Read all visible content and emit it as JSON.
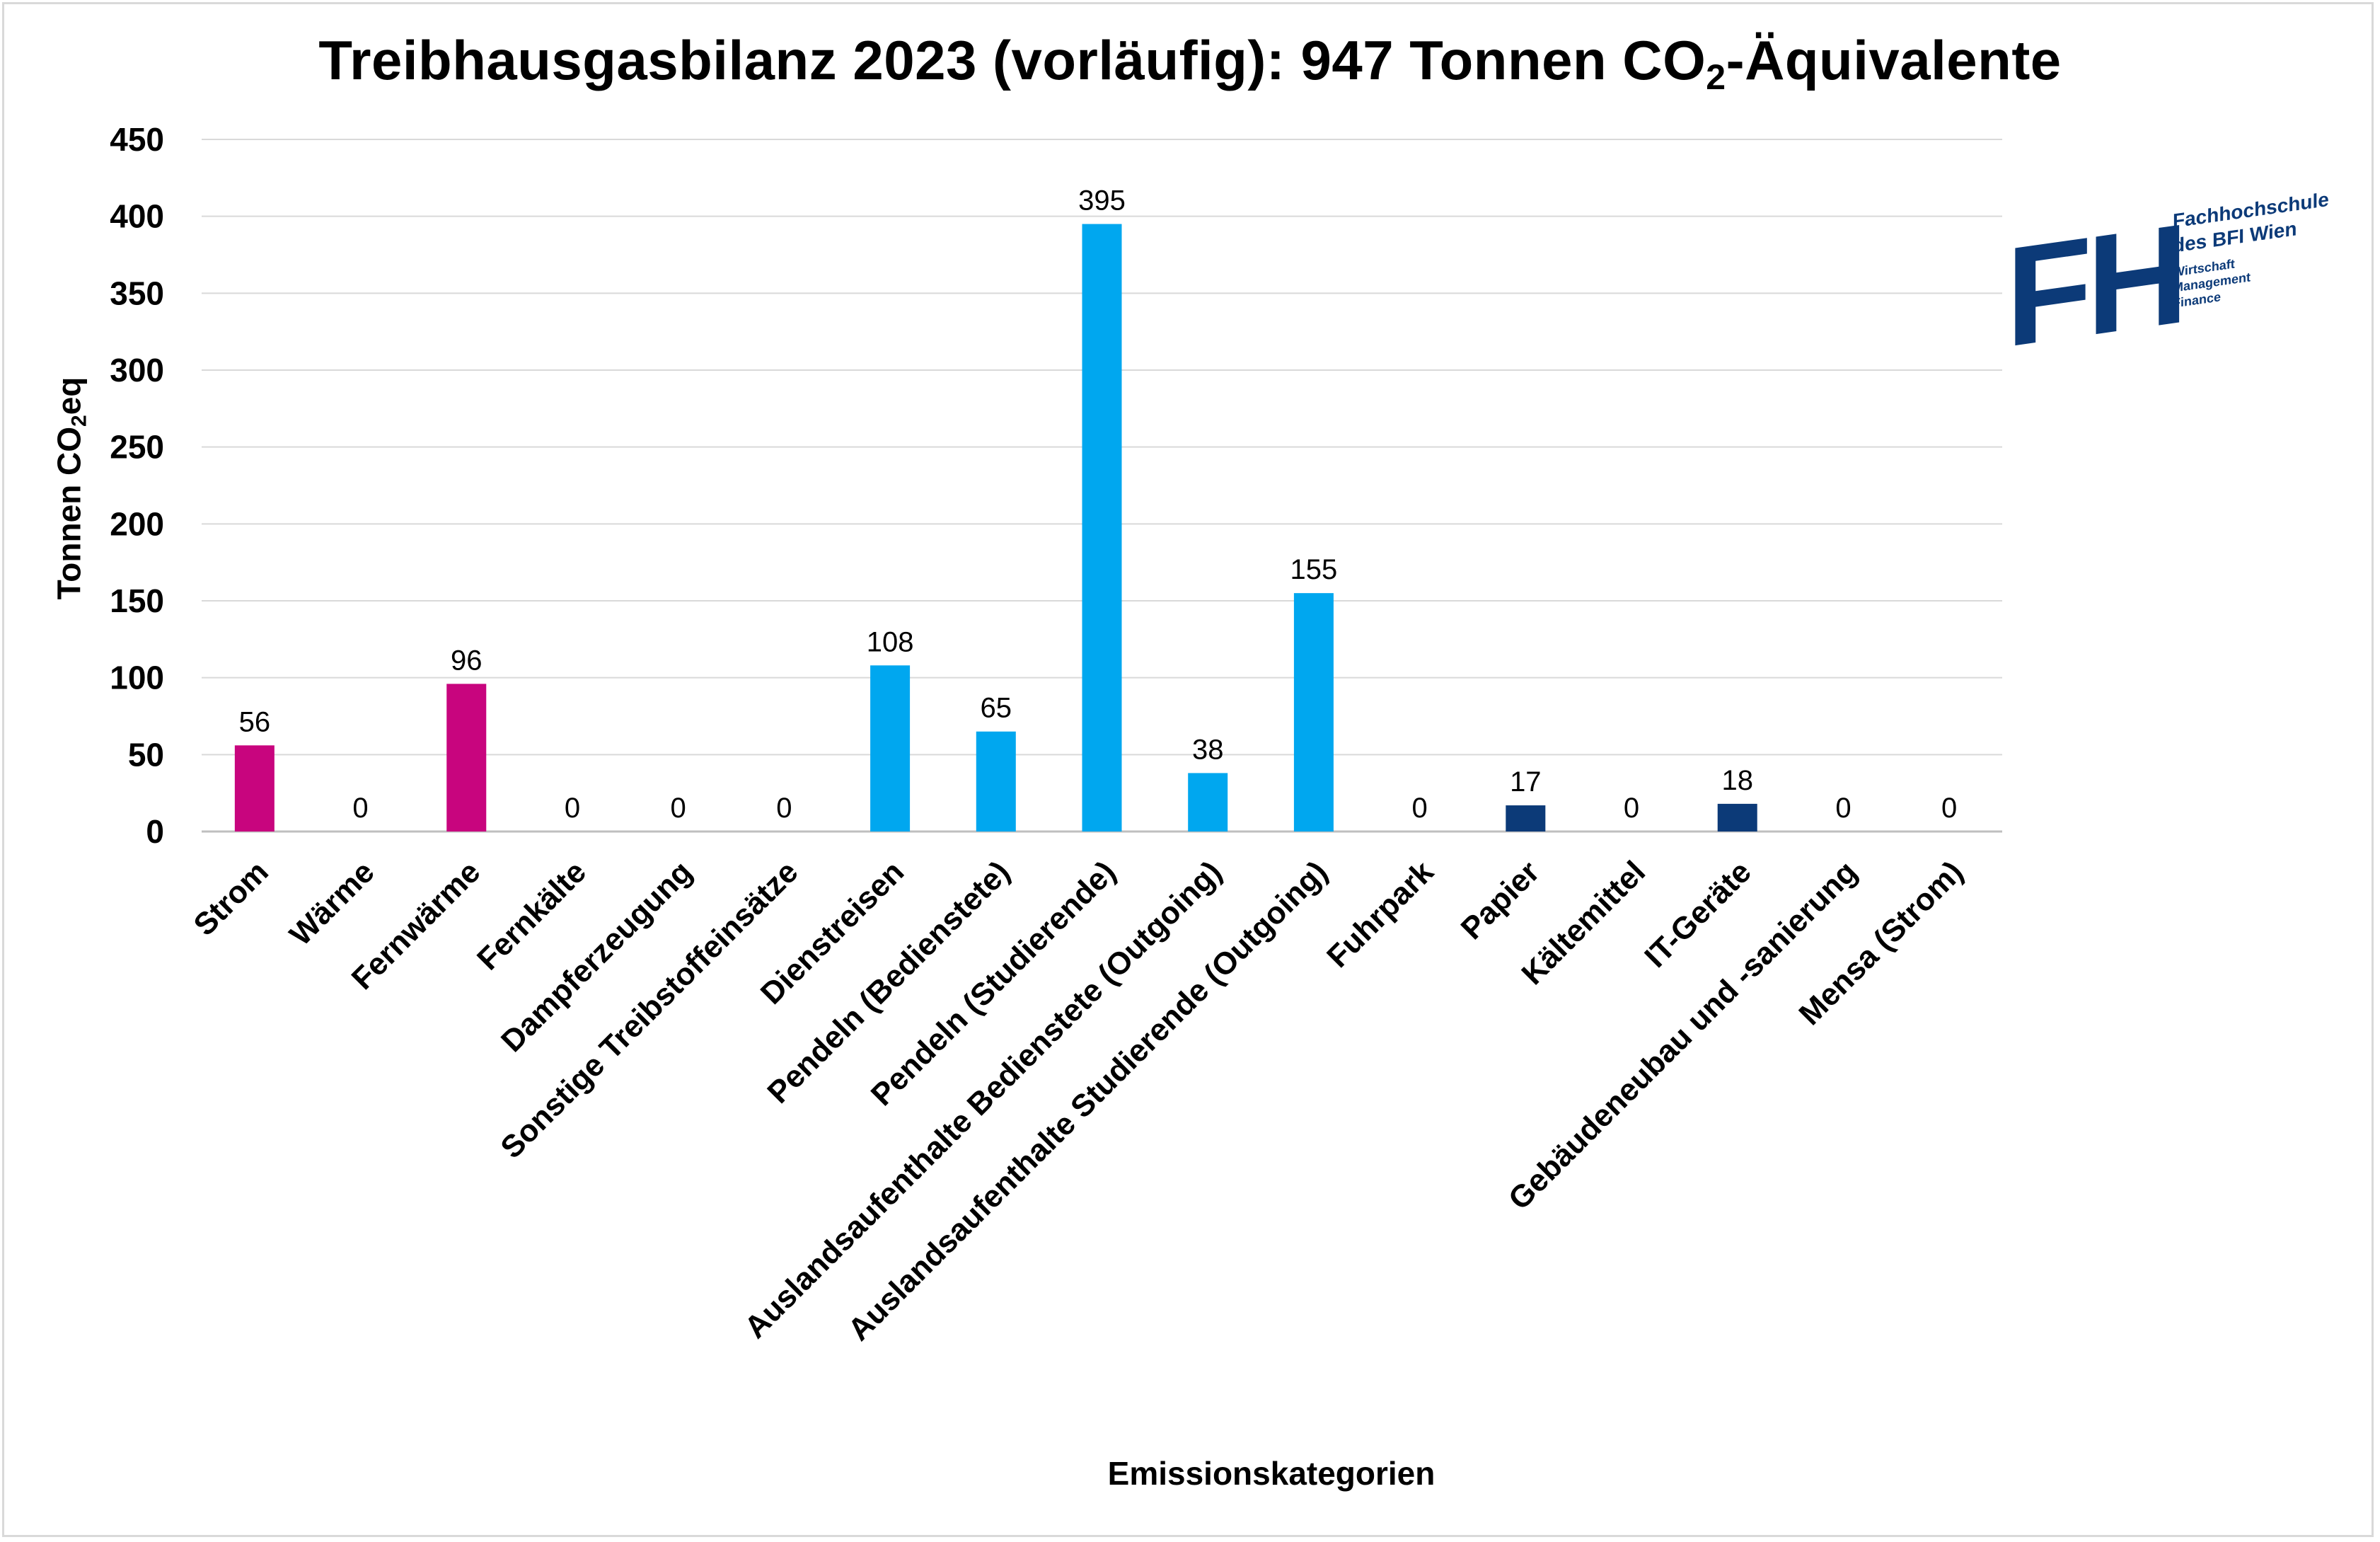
{
  "chart_data": {
    "type": "bar",
    "title_main": "Treibhausgasbilanz 2023 (vorläufig): 947 Tonnen CO",
    "title_sub": "2",
    "title_end": "-Äquivalente",
    "ylabel_main": "Tonnen CO",
    "ylabel_sub": "2",
    "ylabel_end": "eq",
    "xlabel": "Emissionskategorien",
    "ylim": [
      0,
      450
    ],
    "yticks": [
      0,
      50,
      100,
      150,
      200,
      250,
      300,
      350,
      400,
      450
    ],
    "grid": true,
    "legend": "none",
    "categories": [
      "Strom",
      "Wärme",
      "Fernwärme",
      "Fernkälte",
      "Dampferzeugung",
      "Sonstige Treibstoffeinsätze",
      "Dienstreisen",
      "Pendeln (Bedienstete)",
      "Pendeln (Studierende)",
      "Auslandsaufenthalte Bedienstete (Outgoing)",
      "Auslandsaufenthalte Studierende (Outgoing)",
      "Fuhrpark",
      "Papier",
      "Kältemittel",
      "IT-Geräte",
      "Gebäudeneubau und -sanierung",
      "Mensa (Strom)"
    ],
    "values": [
      56,
      0,
      96,
      0,
      0,
      0,
      108,
      65,
      395,
      38,
      155,
      0,
      17,
      0,
      18,
      0,
      0
    ],
    "bar_colors": [
      "#c8057e",
      "#c8057e",
      "#c8057e",
      "#c8057e",
      "#c8057e",
      "#c8057e",
      "#00a7ef",
      "#00a7ef",
      "#00a7ef",
      "#00a7ef",
      "#00a7ef",
      "#0c3a78",
      "#0c3a78",
      "#0c3a78",
      "#0c3a78",
      "#0c3a78",
      "#0c3a78"
    ]
  },
  "logo": {
    "mark": "FH",
    "name_line1": "Fachhochschule",
    "name_line2": "des BFI Wien",
    "tag_line1": "Wirtschaft",
    "tag_line2": "Management",
    "tag_line3": "Finance",
    "color": "#0c3a78"
  }
}
